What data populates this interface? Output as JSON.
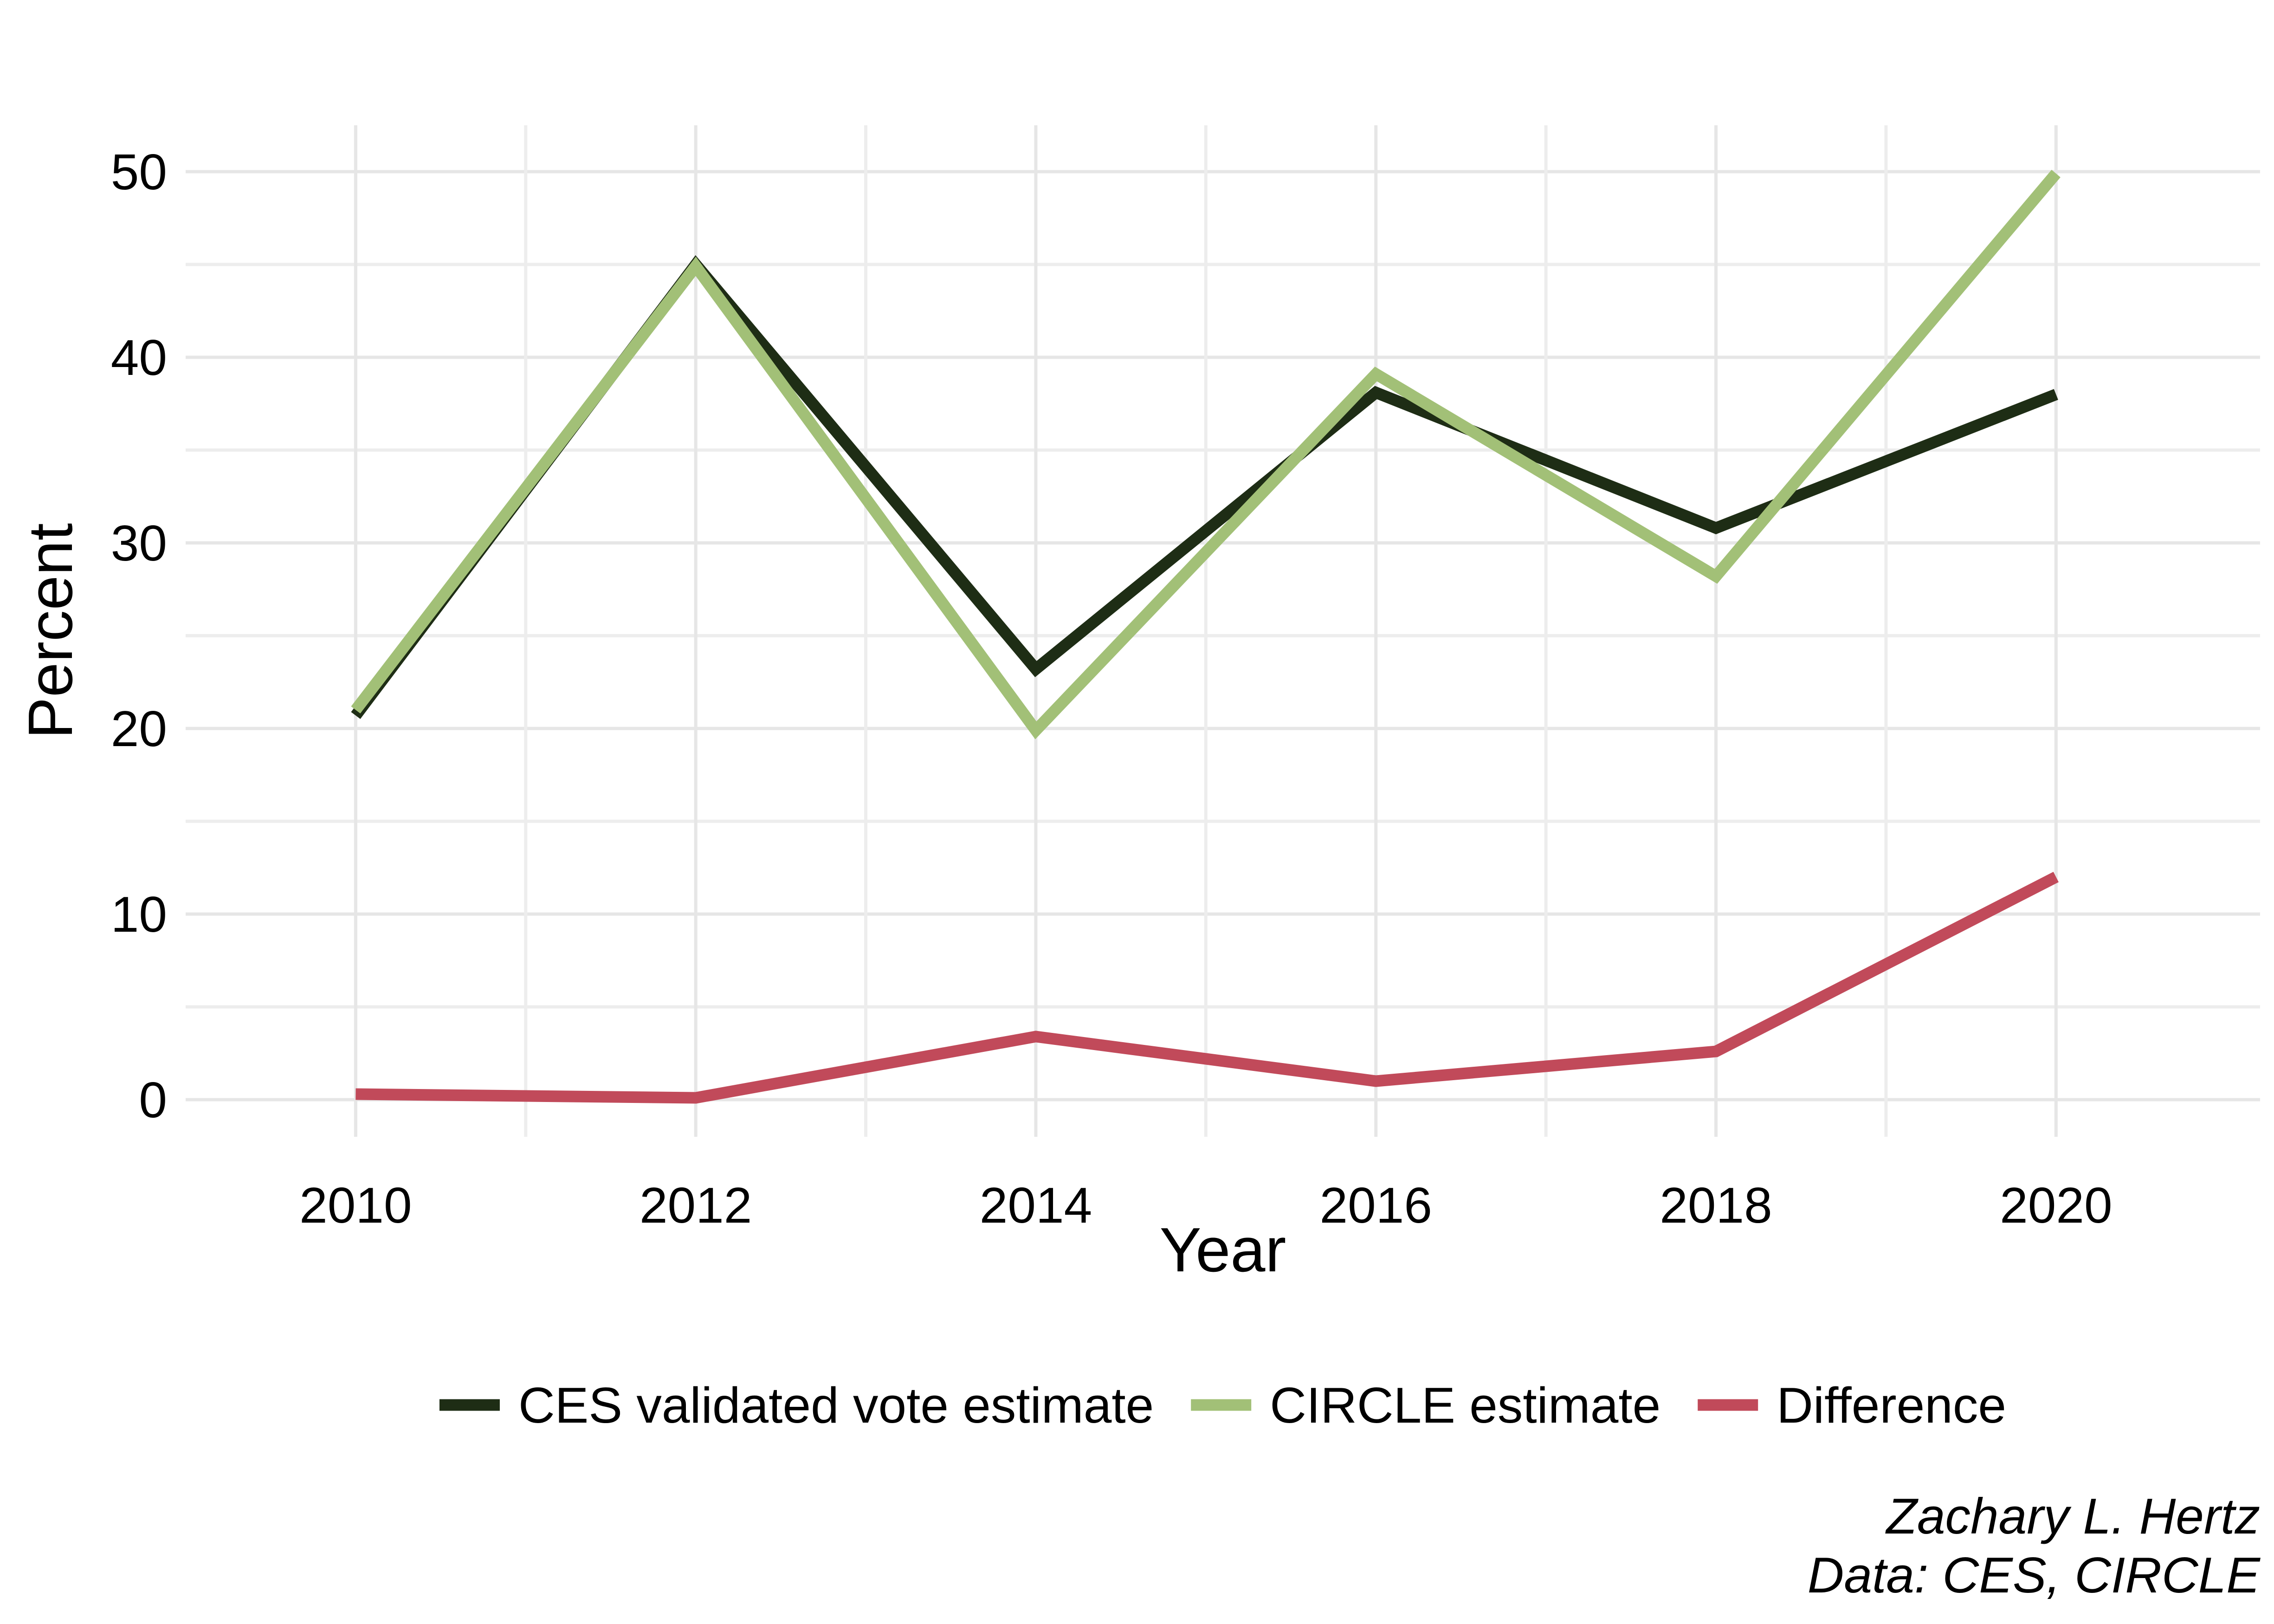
{
  "chart_data": {
    "type": "line",
    "x": [
      2010,
      2012,
      2014,
      2016,
      2018,
      2020
    ],
    "series": [
      {
        "name": "CES validated vote estimate",
        "color": "#1e2d15",
        "values": [
          20.7,
          45.0,
          23.2,
          38.1,
          30.8,
          38.0
        ]
      },
      {
        "name": "CIRCLE estimate",
        "color": "#a2c077",
        "values": [
          21.0,
          44.9,
          19.9,
          39.1,
          28.2,
          49.9
        ]
      },
      {
        "name": "Difference",
        "color": "#c14a5a",
        "values": [
          0.3,
          0.1,
          3.4,
          1.0,
          2.6,
          12.0
        ]
      }
    ],
    "xlabel": "Year",
    "ylabel": "Percent",
    "xlim": [
      2009.0,
      2021.2
    ],
    "ylim": [
      -2.0,
      52.5
    ],
    "x_ticks": [
      "2010",
      "2012",
      "2014",
      "2016",
      "2018",
      "2020"
    ],
    "y_ticks": [
      "0",
      "10",
      "20",
      "30",
      "40",
      "50"
    ],
    "grid": true,
    "legend_position": "bottom"
  },
  "caption": {
    "line1": "Zachary L. Hertz",
    "line2": "Data: CES, CIRCLE"
  }
}
